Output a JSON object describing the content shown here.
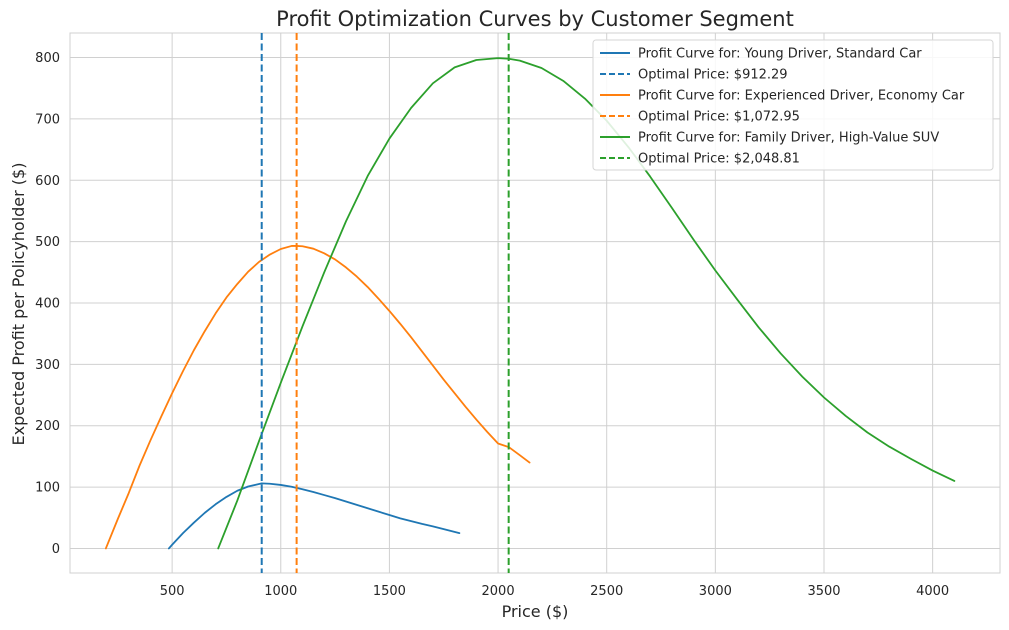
{
  "chart_data": {
    "type": "line",
    "title": "Profit Optimization Curves by Customer Segment",
    "xlabel": "Price ($)",
    "ylabel": "Expected Profit per Policyholder ($)",
    "xlim": [
      30,
      4310
    ],
    "ylim": [
      -40,
      840
    ],
    "x_ticks": [
      500,
      1000,
      1500,
      2000,
      2500,
      3000,
      3500,
      4000
    ],
    "x_tick_labels": [
      "500",
      "1000",
      "1500",
      "2000",
      "2500",
      "3000",
      "3500",
      "4000"
    ],
    "y_ticks": [
      0,
      100,
      200,
      300,
      400,
      500,
      600,
      700,
      800
    ],
    "y_tick_labels": [
      "0",
      "100",
      "200",
      "300",
      "400",
      "500",
      "600",
      "700",
      "800"
    ],
    "grid": true,
    "legend_position": "top-right",
    "series": [
      {
        "name": "Profit Curve for: Young Driver, Standard Car",
        "color": "#1f77b4",
        "x": [
          485,
          500,
          550,
          600,
          650,
          700,
          750,
          800,
          850,
          900,
          912,
          950,
          1000,
          1050,
          1100,
          1150,
          1200,
          1250,
          1300,
          1350,
          1400,
          1450,
          1500,
          1550,
          1600,
          1650,
          1700,
          1750,
          1822
        ],
        "y": [
          0,
          6,
          25,
          42,
          58,
          72,
          84,
          94,
          101,
          105,
          106,
          105.5,
          103.5,
          100.5,
          96.5,
          92,
          87,
          82,
          76.5,
          71,
          65.5,
          60,
          54.5,
          49,
          44.5,
          40,
          36,
          31.5,
          25
        ]
      },
      {
        "name": "Optimal Price: $912.29",
        "color": "#1f77b4",
        "dashed": true,
        "vline_x": 912.29
      },
      {
        "name": "Profit Curve for: Experienced Driver, Economy Car",
        "color": "#ff7f0e",
        "x": [
          195,
          250,
          300,
          350,
          400,
          450,
          500,
          550,
          600,
          650,
          700,
          750,
          800,
          850,
          900,
          950,
          1000,
          1050,
          1073,
          1100,
          1150,
          1200,
          1250,
          1300,
          1350,
          1400,
          1450,
          1500,
          1550,
          1600,
          1650,
          1700,
          1750,
          1800,
          1850,
          1900,
          1950,
          2000,
          2050,
          2100,
          2145
        ],
        "y": [
          0,
          48,
          90,
          135,
          176,
          215,
          253,
          289,
          323,
          354,
          383,
          409,
          431,
          451,
          467,
          479,
          488,
          493,
          493,
          492.5,
          488.5,
          481,
          471,
          458,
          443,
          426,
          407,
          387,
          366,
          344,
          321,
          298,
          275,
          253,
          231,
          210,
          190,
          171,
          165,
          152,
          140
        ]
      },
      {
        "name": "Optimal Price: $1,072.95",
        "color": "#ff7f0e",
        "dashed": true,
        "vline_x": 1072.95
      },
      {
        "name": "Profit Curve for: Family Driver, High-Value SUV",
        "color": "#2ca02c",
        "x": [
          712,
          800,
          900,
          1000,
          1100,
          1200,
          1300,
          1400,
          1500,
          1600,
          1700,
          1800,
          1900,
          2000,
          2049,
          2100,
          2200,
          2300,
          2400,
          2500,
          2600,
          2700,
          2800,
          2900,
          3000,
          3100,
          3200,
          3300,
          3400,
          3500,
          3600,
          3700,
          3800,
          3900,
          4000,
          4100
        ],
        "y": [
          0,
          78,
          175,
          270,
          362,
          450,
          533,
          607,
          668,
          718,
          758,
          784,
          796,
          799,
          798,
          795,
          783,
          762,
          733,
          697,
          654,
          606,
          555,
          503,
          453,
          406,
          360,
          318,
          280,
          246,
          216,
          189,
          166,
          146,
          127,
          110
        ]
      },
      {
        "name": "Optimal Price: $2,048.81",
        "color": "#2ca02c",
        "dashed": true,
        "vline_x": 2048.81
      }
    ]
  }
}
